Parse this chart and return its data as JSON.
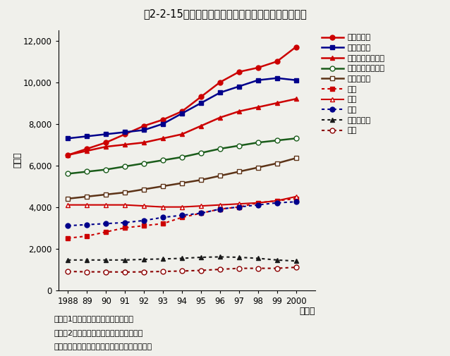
{
  "title": "第2-2-15図　大学等の専門別研究者数の推移（詳細）",
  "ylabel": "（人）",
  "xlabel": "（年）",
  "years": [
    1988,
    1989,
    1990,
    1991,
    1992,
    1993,
    1994,
    1995,
    1996,
    1997,
    1998,
    1999,
    2000
  ],
  "series": [
    {
      "label": "電気・通信",
      "color": "#cc0000",
      "linestyle": "solid",
      "marker": "o",
      "markerfacecolor": "#cc0000",
      "markersize": 5,
      "linewidth": 1.8,
      "data": [
        6500,
        6800,
        7100,
        7500,
        7900,
        8200,
        8600,
        9300,
        10000,
        10500,
        10700,
        11000,
        11700
      ]
    },
    {
      "label": "数学・物理",
      "color": "#00008b",
      "linestyle": "solid",
      "marker": "s",
      "markerfacecolor": "#00008b",
      "markersize": 5,
      "linewidth": 1.8,
      "data": [
        7300,
        7400,
        7500,
        7600,
        7700,
        8000,
        8500,
        9000,
        9500,
        9800,
        10100,
        10200,
        10100
      ]
    },
    {
      "label": "農林・獣医・畜産",
      "color": "#cc0000",
      "linestyle": "solid",
      "marker": "^",
      "markerfacecolor": "#cc0000",
      "markersize": 5,
      "linewidth": 1.8,
      "data": [
        6500,
        6700,
        6900,
        7000,
        7100,
        7300,
        7500,
        7900,
        8300,
        8600,
        8800,
        9000,
        9200
      ]
    },
    {
      "label": "機械・船舶・航空",
      "color": "#1a5c1a",
      "linestyle": "solid",
      "marker": "o",
      "markerfacecolor": "white",
      "markersize": 5,
      "linewidth": 1.8,
      "data": [
        5600,
        5700,
        5800,
        5950,
        6100,
        6250,
        6400,
        6600,
        6800,
        6950,
        7100,
        7200,
        7300
      ]
    },
    {
      "label": "土木・建築",
      "color": "#5c3317",
      "linestyle": "solid",
      "marker": "s",
      "markerfacecolor": "white",
      "markersize": 5,
      "linewidth": 1.8,
      "data": [
        4400,
        4500,
        4600,
        4700,
        4850,
        5000,
        5150,
        5300,
        5500,
        5700,
        5900,
        6100,
        6350
      ]
    },
    {
      "label": "生物",
      "color": "#cc0000",
      "linestyle": "dotted",
      "marker": "s",
      "markerfacecolor": "#cc0000",
      "markersize": 5,
      "linewidth": 1.5,
      "data": [
        2500,
        2600,
        2800,
        3000,
        3100,
        3200,
        3500,
        3700,
        3900,
        4000,
        4200,
        4300,
        4400
      ]
    },
    {
      "label": "薬学",
      "color": "#cc0000",
      "linestyle": "solid",
      "marker": "^",
      "markerfacecolor": "white",
      "markersize": 5,
      "linewidth": 1.5,
      "data": [
        4100,
        4100,
        4100,
        4100,
        4050,
        4000,
        4000,
        4050,
        4100,
        4150,
        4200,
        4300,
        4500
      ]
    },
    {
      "label": "化学",
      "color": "#00008b",
      "linestyle": "dotted",
      "marker": "o",
      "markerfacecolor": "#00008b",
      "markersize": 5,
      "linewidth": 1.5,
      "data": [
        3100,
        3150,
        3200,
        3250,
        3350,
        3500,
        3600,
        3700,
        3900,
        4000,
        4100,
        4200,
        4250
      ]
    },
    {
      "label": "鉱山・金属",
      "color": "#1a1a1a",
      "linestyle": "dotted",
      "marker": "^",
      "markerfacecolor": "#1a1a1a",
      "markersize": 5,
      "linewidth": 1.5,
      "data": [
        1450,
        1450,
        1450,
        1450,
        1480,
        1500,
        1530,
        1580,
        1600,
        1580,
        1530,
        1450,
        1400
      ]
    },
    {
      "label": "水産",
      "color": "#8b0000",
      "linestyle": "dotted",
      "marker": "o",
      "markerfacecolor": "white",
      "markersize": 5,
      "linewidth": 1.5,
      "data": [
        900,
        880,
        880,
        870,
        880,
        900,
        920,
        950,
        1000,
        1050,
        1050,
        1050,
        1100
      ]
    }
  ],
  "ylim": [
    0,
    12500
  ],
  "yticks": [
    0,
    2000,
    4000,
    6000,
    8000,
    10000,
    12000
  ],
  "ytick_labels": [
    "0",
    "2,000",
    "4,000",
    "6,000",
    "8,000",
    "10,000",
    "12,000"
  ],
  "xtick_labels": [
    "1988",
    "89",
    "90",
    "91",
    "92",
    "93",
    "94",
    "95",
    "96",
    "97",
    "98",
    "99",
    "2000"
  ],
  "note1": "注）　1．自然科学のみの値である。",
  "note2": "　　　2．研究者数は各年４月１日現在。",
  "note3": "資料：総務省統計局「科学技術研究調査報告」",
  "background_color": "#f0f0eb",
  "plot_background": "#f0f0eb"
}
